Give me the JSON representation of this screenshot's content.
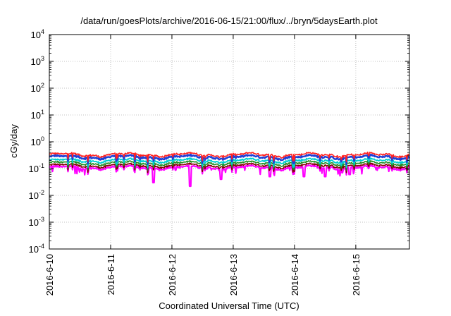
{
  "chart_data": {
    "type": "line",
    "title": "/data/run/goesPlots/archive/2016-06-15/21:00/flux/../bryn/5daysEarth.plot",
    "xlabel": "Coordinated Universal Time (UTC)",
    "ylabel": "cGy/day",
    "yscale": "log",
    "ylim": [
      0.0001,
      10000
    ],
    "xlim": [
      "2016-6-10",
      "2016-6-15 21:00"
    ],
    "grid": true,
    "x_tick_labels": [
      "2016-6-10",
      "2016-6-11",
      "2016-6-12",
      "2016-6-13",
      "2016-6-14",
      "2016-6-15"
    ],
    "y_ticks": [
      {
        "base": "10",
        "exp": "-4"
      },
      {
        "base": "10",
        "exp": "-3"
      },
      {
        "base": "10",
        "exp": "-2"
      },
      {
        "base": "10",
        "exp": "-1"
      },
      {
        "base": "10",
        "exp": "0"
      },
      {
        "base": "10",
        "exp": "1"
      },
      {
        "base": "10",
        "exp": "2"
      },
      {
        "base": "10",
        "exp": "3"
      },
      {
        "base": "10",
        "exp": "4"
      }
    ],
    "series": [
      {
        "color": "#ff00ff",
        "typical": 0.11,
        "dips": [
          [
            "2016-6-11 16:48",
            0.03
          ],
          [
            "2016-6-12 07:12",
            0.022
          ],
          [
            "2016-6-12 19:12",
            0.04
          ],
          [
            "2016-6-13 14:24",
            0.05
          ],
          [
            "2016-6-14 03:36",
            0.05
          ],
          [
            "2016-6-14 12:00",
            0.05
          ],
          [
            "2016-6-14 21:36",
            0.06
          ]
        ]
      },
      {
        "color": "#800000",
        "typical": 0.13,
        "dips": []
      },
      {
        "color": "#228b22",
        "typical": 0.16,
        "dips": []
      },
      {
        "color": "#00ced1",
        "typical": 0.2,
        "dips": []
      },
      {
        "color": "#1f3fd6",
        "typical": 0.27,
        "dips": []
      },
      {
        "color": "#ff2020",
        "typical": 0.33,
        "dips": []
      }
    ]
  }
}
